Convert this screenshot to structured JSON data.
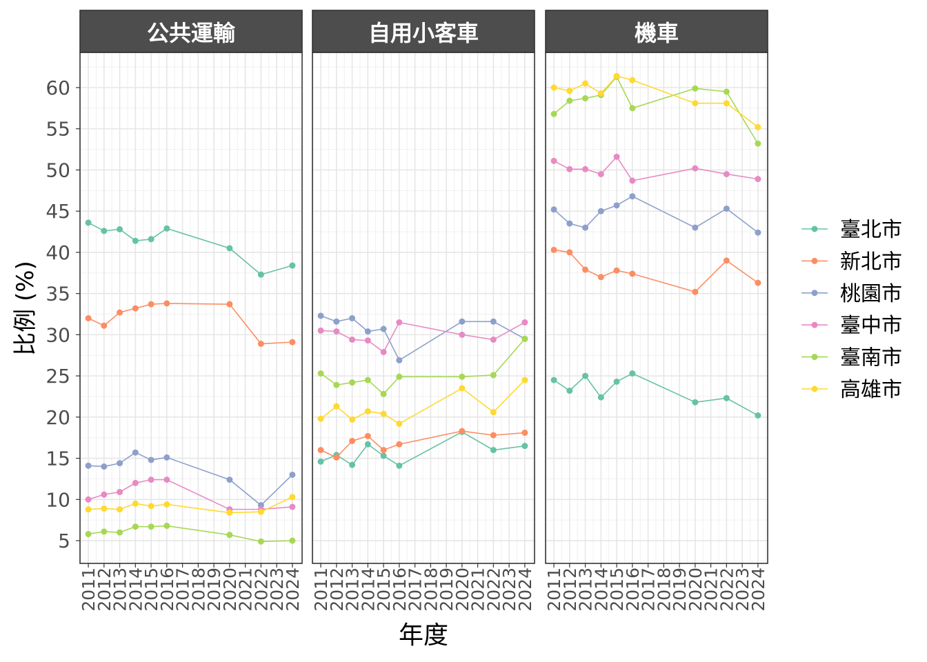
{
  "chart_data": {
    "type": "line",
    "xlabel": "年度",
    "ylabel": "比例 (%)",
    "ylim": [
      2.24,
      64.27
    ],
    "xlim": [
      2010.47,
      2024.62
    ],
    "yticks": [
      5,
      10,
      15,
      20,
      25,
      30,
      35,
      40,
      45,
      50,
      55,
      60
    ],
    "xticks": [
      2011,
      2012,
      2013,
      2014,
      2015,
      2016,
      2017,
      2018,
      2019,
      2020,
      2021,
      2022,
      2023,
      2024
    ],
    "grid": true,
    "legend_position": "right",
    "x": [
      2011,
      2012,
      2013,
      2014,
      2015,
      2016,
      2020,
      2022,
      2024
    ],
    "series_names": [
      "臺北市",
      "新北市",
      "桃園市",
      "臺中市",
      "臺南市",
      "高雄市"
    ],
    "colors": [
      "#66C2A5",
      "#FC8D62",
      "#8DA0CB",
      "#E78AC3",
      "#A6D854",
      "#FFD92F"
    ],
    "panels": [
      {
        "title": "公共運輸",
        "series": [
          {
            "name": "臺北市",
            "values": [
              43.6,
              42.6,
              42.8,
              41.4,
              41.6,
              42.9,
              40.5,
              37.3,
              38.4
            ]
          },
          {
            "name": "新北市",
            "values": [
              32.0,
              31.1,
              32.7,
              33.2,
              33.7,
              33.8,
              33.7,
              28.9,
              29.1
            ]
          },
          {
            "name": "桃園市",
            "values": [
              14.1,
              14.0,
              14.4,
              15.7,
              14.8,
              15.1,
              12.4,
              9.3,
              13.0
            ]
          },
          {
            "name": "臺中市",
            "values": [
              10.0,
              10.6,
              10.9,
              12.0,
              12.4,
              12.4,
              8.8,
              8.8,
              9.1
            ]
          },
          {
            "name": "臺南市",
            "values": [
              5.8,
              6.1,
              6.0,
              6.7,
              6.7,
              6.8,
              5.7,
              4.9,
              5.0
            ]
          },
          {
            "name": "高雄市",
            "values": [
              8.8,
              8.9,
              8.8,
              9.5,
              9.2,
              9.4,
              8.4,
              8.5,
              10.3
            ]
          }
        ]
      },
      {
        "title": "自用小客車",
        "series": [
          {
            "name": "臺北市",
            "values": [
              14.6,
              15.4,
              14.2,
              16.7,
              15.3,
              14.1,
              18.2,
              16.0,
              16.5
            ]
          },
          {
            "name": "新北市",
            "values": [
              16.0,
              15.1,
              17.1,
              17.7,
              16.0,
              16.7,
              18.3,
              17.8,
              18.1
            ]
          },
          {
            "name": "桃園市",
            "values": [
              32.3,
              31.6,
              32.0,
              30.4,
              30.7,
              26.9,
              31.6,
              31.6,
              29.5
            ]
          },
          {
            "name": "臺中市",
            "values": [
              30.5,
              30.4,
              29.4,
              29.3,
              27.9,
              31.5,
              30.0,
              29.4,
              31.5
            ]
          },
          {
            "name": "臺南市",
            "values": [
              25.3,
              23.9,
              24.2,
              24.5,
              22.8,
              24.9,
              24.9,
              25.1,
              29.5
            ]
          },
          {
            "name": "高雄市",
            "values": [
              19.8,
              21.3,
              19.7,
              20.7,
              20.4,
              19.2,
              23.5,
              20.6,
              24.5
            ]
          }
        ]
      },
      {
        "title": "機車",
        "series": [
          {
            "name": "臺北市",
            "values": [
              24.5,
              23.2,
              25.0,
              22.4,
              24.3,
              25.3,
              21.8,
              22.3,
              20.2
            ]
          },
          {
            "name": "新北市",
            "values": [
              40.3,
              40.0,
              37.9,
              37.0,
              37.8,
              37.4,
              35.2,
              39.0,
              36.3
            ]
          },
          {
            "name": "桃園市",
            "values": [
              45.2,
              43.5,
              43.0,
              45.0,
              45.7,
              46.8,
              43.0,
              45.3,
              42.4
            ]
          },
          {
            "name": "臺中市",
            "values": [
              51.1,
              50.1,
              50.1,
              49.5,
              51.6,
              48.7,
              50.2,
              49.5,
              48.9
            ]
          },
          {
            "name": "臺南市",
            "values": [
              56.8,
              58.4,
              58.7,
              59.1,
              61.3,
              57.5,
              59.9,
              59.5,
              53.2
            ]
          },
          {
            "name": "高雄市",
            "values": [
              60.0,
              59.6,
              60.5,
              59.3,
              61.4,
              60.9,
              58.1,
              58.1,
              55.2
            ]
          }
        ]
      }
    ]
  }
}
